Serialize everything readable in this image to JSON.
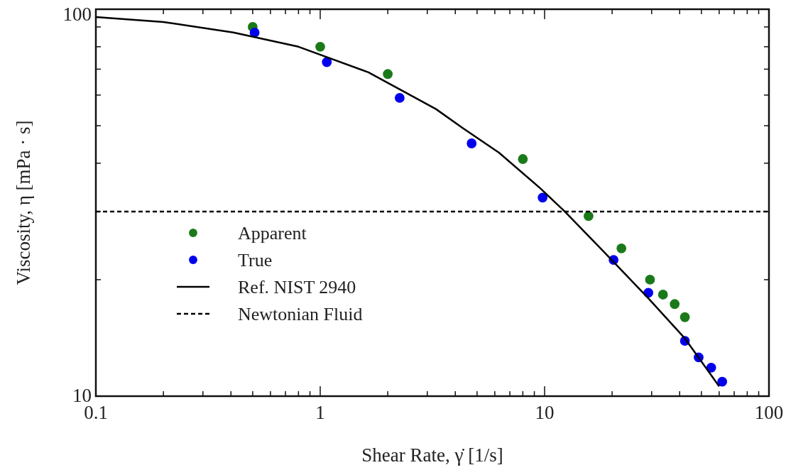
{
  "chart_data": {
    "type": "scatter",
    "xlabel": "Shear Rate, γ̇ [1/s]",
    "ylabel": "Viscosity, η [mPa · s]",
    "log": "xy",
    "grid": false,
    "legend": "bottom left",
    "xlim": [
      0.1,
      100
    ],
    "ylim": [
      10,
      100
    ],
    "xticks": [
      0.1,
      {
        "value": 0.2,
        "label": null
      },
      {
        "value": 0.3,
        "label": null
      },
      {
        "value": 0.4,
        "label": null
      },
      {
        "value": 0.5,
        "label": null
      },
      {
        "value": 0.6,
        "label": null
      },
      {
        "value": 0.7,
        "label": null
      },
      {
        "value": 0.8,
        "label": null
      },
      {
        "value": 0.9,
        "label": null
      },
      1,
      {
        "value": 2,
        "label": null
      },
      {
        "value": 3,
        "label": null
      },
      {
        "value": 4,
        "label": null
      },
      {
        "value": 5,
        "label": null
      },
      {
        "value": 6,
        "label": null
      },
      {
        "value": 7,
        "label": null
      },
      {
        "value": 8,
        "label": null
      },
      {
        "value": 9,
        "label": null
      },
      10,
      {
        "value": 20,
        "label": null
      },
      {
        "value": 30,
        "label": null
      },
      {
        "value": 40,
        "label": null
      },
      {
        "value": 50,
        "label": null
      },
      {
        "value": 60,
        "label": null
      },
      {
        "value": 70,
        "label": null
      },
      {
        "value": 80,
        "label": null
      },
      {
        "value": 90,
        "label": null
      },
      100
    ],
    "yticks": [
      10,
      {
        "value": 20,
        "label": null
      },
      {
        "value": 30,
        "label": null
      },
      {
        "value": 40,
        "label": null
      },
      {
        "value": 50,
        "label": null
      },
      {
        "value": 60,
        "label": null
      },
      {
        "value": 70,
        "label": null
      },
      {
        "value": 80,
        "label": null
      },
      {
        "value": 90,
        "label": null
      },
      100
    ],
    "series": [
      {
        "name": "Apparent",
        "marker": "circle",
        "color": "#1a7a1a",
        "x": [
          0.5,
          1,
          2,
          8,
          15.7,
          22,
          29.5,
          33.7,
          38,
          42.2
        ],
        "values": [
          90,
          80,
          68,
          41,
          29.2,
          24.1,
          20,
          18.3,
          17.3,
          16
        ]
      },
      {
        "name": "True",
        "marker": "circle",
        "color": "#0000ee",
        "x": [
          0.51,
          1.07,
          2.26,
          4.73,
          9.8,
          20.3,
          29,
          42.2,
          48.6,
          55.3,
          61.9
        ],
        "values": [
          87,
          73,
          59,
          45,
          32.6,
          22.5,
          18.5,
          13.9,
          12.6,
          11.85,
          10.9
        ]
      },
      {
        "name": "Ref. NIST 2940",
        "type": "line",
        "color": "#000000",
        "line_style": "solid",
        "x": [
          0.1,
          0.2,
          0.41,
          0.8,
          1.64,
          3.28,
          4.3,
          6.26,
          9.6,
          12.3,
          18.4,
          29,
          42.2,
          60
        ],
        "values": [
          95.5,
          92.7,
          87.1,
          80,
          68.7,
          55.2,
          49.4,
          42.6,
          34.4,
          30,
          23.6,
          17.9,
          14.1,
          10.6
        ]
      },
      {
        "name": "Newtonian Fluid",
        "type": "line",
        "color": "#000000",
        "line_style": "dashed",
        "x": [
          0.1,
          100
        ],
        "values": [
          30,
          30
        ]
      }
    ]
  }
}
